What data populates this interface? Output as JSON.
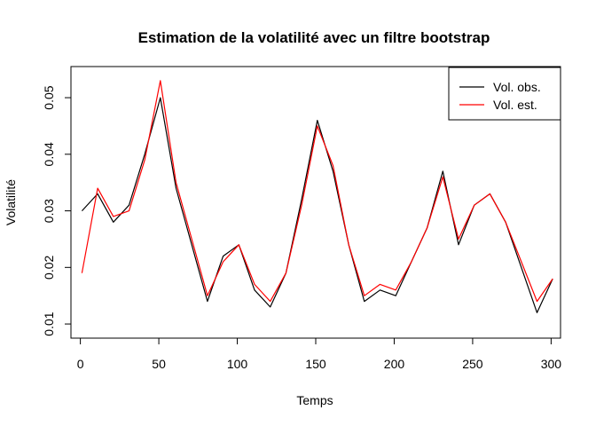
{
  "chart_data": {
    "type": "line",
    "title": "Estimation de la volatilité avec un filtre bootstrap",
    "xlabel": "Temps",
    "ylabel": "Volatilité",
    "xlim": [
      -6,
      306
    ],
    "ylim": [
      0.0075,
      0.0555
    ],
    "x_ticks": [
      0,
      50,
      100,
      150,
      200,
      250,
      300
    ],
    "x_tick_labels": [
      "0",
      "50",
      "100",
      "150",
      "200",
      "250",
      "300"
    ],
    "y_ticks": [
      0.01,
      0.02,
      0.03,
      0.04,
      0.05
    ],
    "y_tick_labels": [
      "0.01",
      "0.02",
      "0.03",
      "0.04",
      "0.05"
    ],
    "legend_position": "top-right",
    "grid": false,
    "series": [
      {
        "name": "Vol. obs.",
        "color": "#000000",
        "x_start": 1,
        "x_step": 10,
        "anchors": [
          0.03,
          0.033,
          0.028,
          0.031,
          0.04,
          0.05,
          0.034,
          0.024,
          0.014,
          0.022,
          0.024,
          0.016,
          0.013,
          0.019,
          0.032,
          0.046,
          0.037,
          0.024,
          0.014,
          0.016,
          0.015,
          0.021,
          0.027,
          0.037,
          0.024,
          0.031,
          0.033,
          0.028,
          0.02,
          0.012,
          0.018
        ]
      },
      {
        "name": "Vol. est.",
        "color": "#ff0000",
        "x_start": 1,
        "x_step": 10,
        "anchors": [
          0.019,
          0.034,
          0.029,
          0.03,
          0.039,
          0.053,
          0.035,
          0.025,
          0.015,
          0.021,
          0.024,
          0.017,
          0.014,
          0.019,
          0.031,
          0.045,
          0.038,
          0.024,
          0.015,
          0.017,
          0.016,
          0.021,
          0.027,
          0.036,
          0.025,
          0.031,
          0.033,
          0.028,
          0.021,
          0.014,
          0.018
        ]
      }
    ]
  }
}
